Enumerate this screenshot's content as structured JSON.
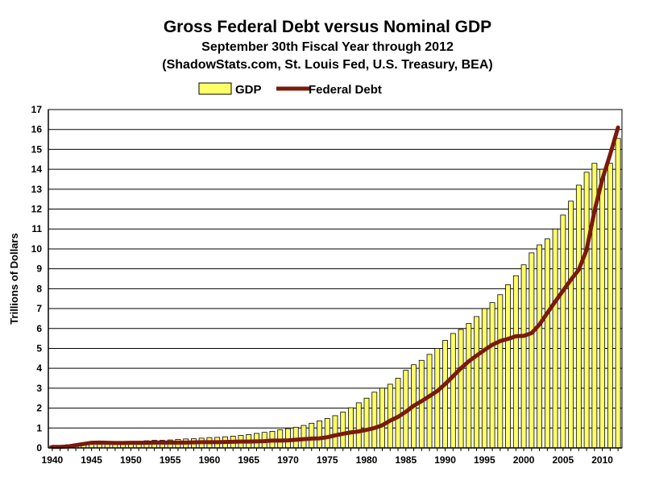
{
  "chart_data": {
    "type": "bar",
    "title": "Gross Federal Debt versus Nominal GDP",
    "subtitle": "September 30th Fiscal Year through 2012",
    "source": "(ShadowStats.com, St. Louis Fed, U.S. Treasury, BEA)",
    "ylabel": "Trillions of Dollars",
    "ylim": [
      0,
      17
    ],
    "yticks": [
      "0",
      "1",
      "2",
      "3",
      "4",
      "5",
      "6",
      "7",
      "8",
      "9",
      "10",
      "11",
      "12",
      "13",
      "14",
      "15",
      "16",
      "17"
    ],
    "xticks": [
      "1940",
      "1945",
      "1950",
      "1955",
      "1960",
      "1965",
      "1970",
      "1975",
      "1980",
      "1985",
      "1990",
      "1995",
      "2000",
      "2005",
      "2010"
    ],
    "grid": true,
    "legend_position": "top-center",
    "x": [
      1940,
      1941,
      1942,
      1943,
      1944,
      1945,
      1946,
      1947,
      1948,
      1949,
      1950,
      1951,
      1952,
      1953,
      1954,
      1955,
      1956,
      1957,
      1958,
      1959,
      1960,
      1961,
      1962,
      1963,
      1964,
      1965,
      1966,
      1967,
      1968,
      1969,
      1970,
      1971,
      1972,
      1973,
      1974,
      1975,
      1976,
      1977,
      1978,
      1979,
      1980,
      1981,
      1982,
      1983,
      1984,
      1985,
      1986,
      1987,
      1988,
      1989,
      1990,
      1991,
      1992,
      1993,
      1994,
      1995,
      1996,
      1997,
      1998,
      1999,
      2000,
      2001,
      2002,
      2003,
      2004,
      2005,
      2006,
      2007,
      2008,
      2009,
      2010,
      2011,
      2012
    ],
    "series": [
      {
        "name": "GDP",
        "kind": "bar",
        "color": "#ffff66",
        "values": [
          0.1,
          0.12,
          0.16,
          0.19,
          0.21,
          0.21,
          0.21,
          0.24,
          0.26,
          0.27,
          0.28,
          0.33,
          0.36,
          0.38,
          0.38,
          0.4,
          0.43,
          0.45,
          0.46,
          0.49,
          0.52,
          0.53,
          0.56,
          0.59,
          0.63,
          0.67,
          0.73,
          0.78,
          0.83,
          0.91,
          0.97,
          1.04,
          1.13,
          1.24,
          1.36,
          1.48,
          1.62,
          1.8,
          2.02,
          2.27,
          2.5,
          2.8,
          3.0,
          3.2,
          3.5,
          3.9,
          4.18,
          4.4,
          4.7,
          5.0,
          5.4,
          5.75,
          5.95,
          6.25,
          6.6,
          7.0,
          7.3,
          7.7,
          8.2,
          8.65,
          9.2,
          9.8,
          10.2,
          10.5,
          11.0,
          11.7,
          12.4,
          13.2,
          13.85,
          14.3,
          14.0,
          14.3,
          15.55
        ]
      },
      {
        "name": "Federal Debt",
        "kind": "line",
        "color": "#7a1a0a",
        "values": [
          0.05,
          0.05,
          0.07,
          0.14,
          0.2,
          0.26,
          0.27,
          0.26,
          0.25,
          0.25,
          0.26,
          0.26,
          0.26,
          0.27,
          0.27,
          0.27,
          0.27,
          0.27,
          0.28,
          0.29,
          0.29,
          0.29,
          0.3,
          0.31,
          0.32,
          0.32,
          0.33,
          0.34,
          0.37,
          0.37,
          0.38,
          0.41,
          0.44,
          0.47,
          0.48,
          0.54,
          0.63,
          0.71,
          0.78,
          0.83,
          0.91,
          1.0,
          1.14,
          1.37,
          1.56,
          1.82,
          2.12,
          2.35,
          2.6,
          2.86,
          3.21,
          3.6,
          4.0,
          4.35,
          4.64,
          4.92,
          5.18,
          5.37,
          5.48,
          5.61,
          5.63,
          5.77,
          6.2,
          6.78,
          7.35,
          7.9,
          8.45,
          8.95,
          9.95,
          11.9,
          13.5,
          14.75,
          16.1
        ]
      }
    ]
  }
}
